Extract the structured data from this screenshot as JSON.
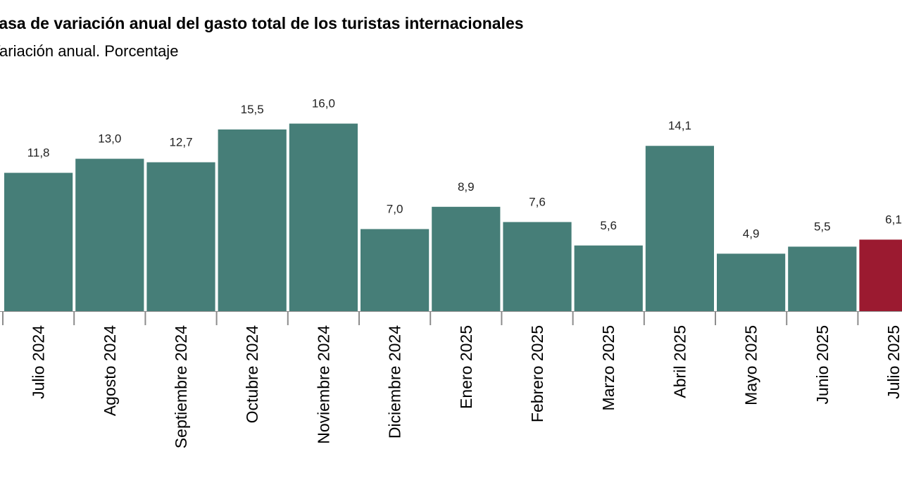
{
  "chart_data": {
    "type": "bar",
    "title": "Tasa de variación anual del gasto total de los turistas internacionales",
    "subtitle": "Variación anual. Porcentaje",
    "categories": [
      "Julio 2024",
      "Agosto 2024",
      "Septiembre 2024",
      "Octubre 2024",
      "Noviembre 2024",
      "Diciembre 2024",
      "Enero 2025",
      "Febrero 2025",
      "Marzo 2025",
      "Abril 2025",
      "Mayo 2025",
      "Junio 2025",
      "Julio 2025"
    ],
    "values": [
      11.8,
      13.0,
      12.7,
      15.5,
      16.0,
      7.0,
      8.9,
      7.6,
      5.6,
      14.1,
      4.9,
      5.5,
      6.1
    ],
    "value_labels": [
      "11,8",
      "13,0",
      "12,7",
      "15,5",
      "16,0",
      "7,0",
      "8,9",
      "7,6",
      "5,6",
      "14,1",
      "4,9",
      "5,5",
      "6,1"
    ],
    "ylim": [
      0,
      17
    ],
    "grid": false,
    "xlabel": "",
    "ylabel": "",
    "colors": {
      "default": "#467e78",
      "highlight": "#9b1a30"
    },
    "highlight_index": 12
  }
}
